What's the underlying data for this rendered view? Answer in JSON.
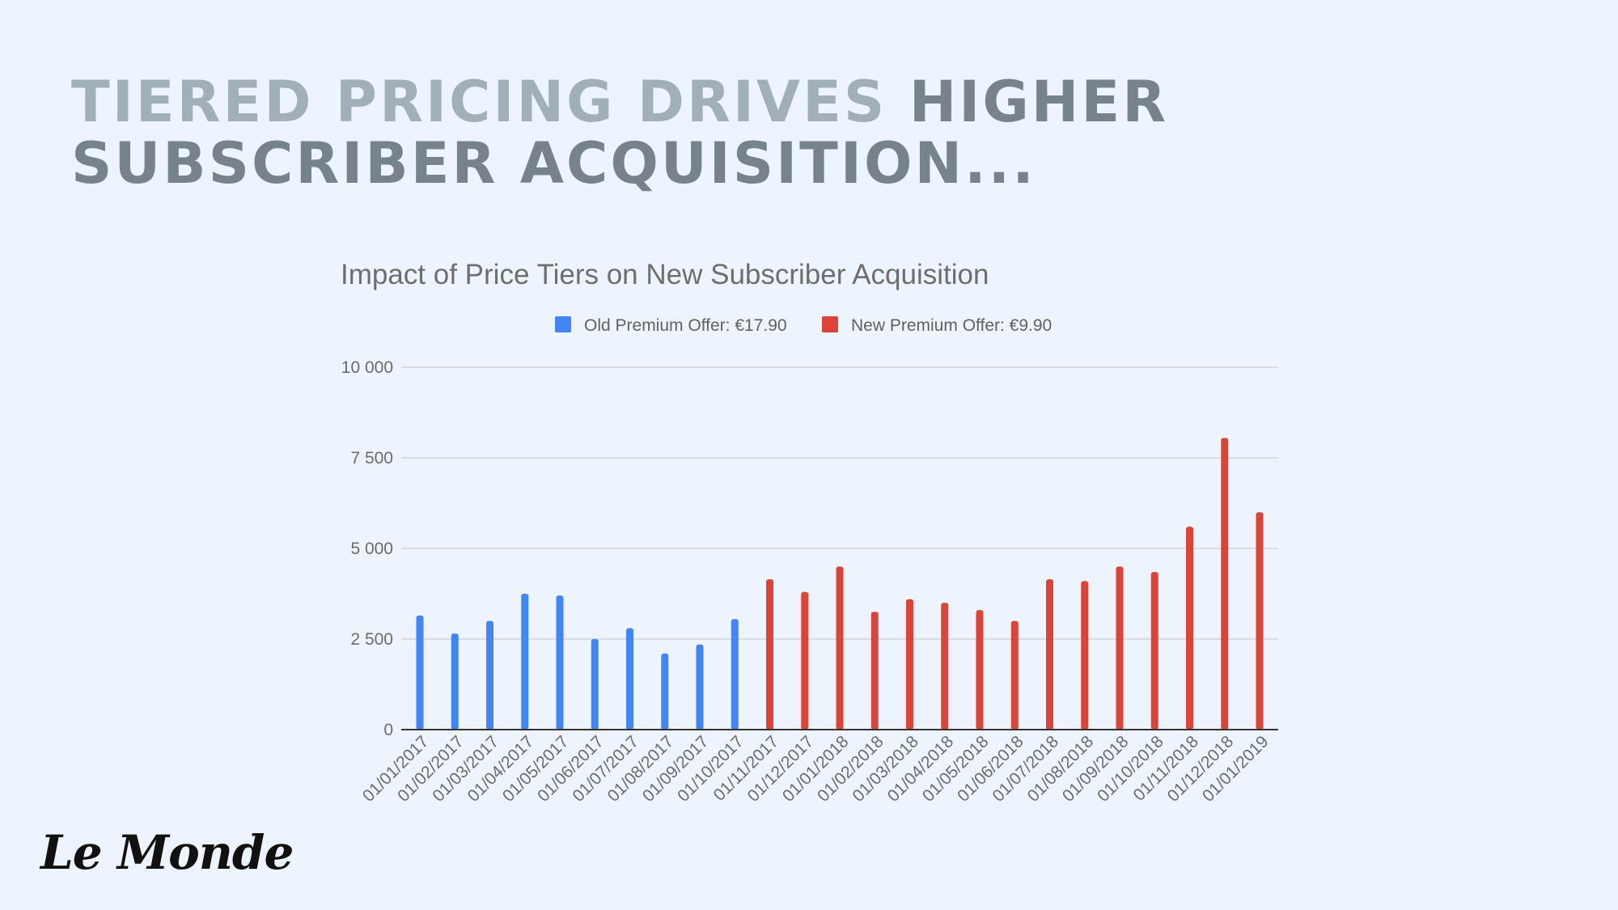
{
  "headline": {
    "part1": "TIERED PRICING DRIVES",
    "part2": "HIGHER SUBSCRIBER ACQUISITION..."
  },
  "logo": {
    "text": "Le Monde"
  },
  "colors": {
    "old_offer": "#4285f4",
    "new_offer": "#db4437",
    "headline_dark": "#76838d",
    "headline_light": "#a1afb7"
  },
  "chart_data": {
    "type": "bar",
    "title": "Impact of Price Tiers on New Subscriber Acquisition",
    "legend_position": "top",
    "grid": true,
    "ylim": [
      0,
      10000
    ],
    "y_ticks": [
      "0",
      "2 500",
      "5 000",
      "7 500",
      "10 000"
    ],
    "y_tick_values": [
      0,
      2500,
      5000,
      7500,
      10000
    ],
    "categories": [
      "01/01/2017",
      "01/02/2017",
      "01/03/2017",
      "01/04/2017",
      "01/05/2017",
      "01/06/2017",
      "01/07/2017",
      "01/08/2017",
      "01/09/2017",
      "01/10/2017",
      "01/11/2017",
      "01/12/2017",
      "01/01/2018",
      "01/02/2018",
      "01/03/2018",
      "01/04/2018",
      "01/05/2018",
      "01/06/2018",
      "01/07/2018",
      "01/08/2018",
      "01/09/2018",
      "01/10/2018",
      "01/11/2018",
      "01/12/2018",
      "01/01/2019"
    ],
    "series": [
      {
        "name": "Old Premium Offer: €17.90",
        "color": "#4285f4",
        "values": [
          3150,
          2650,
          3000,
          3750,
          3700,
          2500,
          2800,
          2100,
          2350,
          3050,
          null,
          null,
          null,
          null,
          null,
          null,
          null,
          null,
          null,
          null,
          null,
          null,
          null,
          null,
          null
        ]
      },
      {
        "name": "New Premium Offer: €9.90",
        "color": "#db4437",
        "values": [
          null,
          null,
          null,
          null,
          null,
          null,
          null,
          null,
          null,
          null,
          4150,
          3800,
          4500,
          3250,
          3600,
          3500,
          3300,
          3000,
          4150,
          4100,
          4500,
          4350,
          5600,
          8050,
          6000
        ]
      }
    ]
  }
}
